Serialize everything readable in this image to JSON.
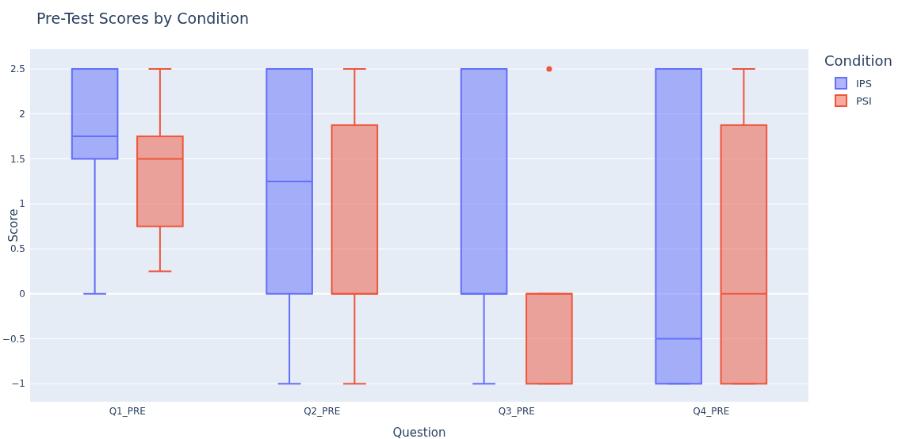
{
  "chart_data": {
    "type": "box",
    "title": "Pre-Test Scores by Condition",
    "xlabel": "Question",
    "ylabel": "Score",
    "legend_title": "Condition",
    "legend": "top right",
    "grid": "y",
    "categories": [
      "Q1_PRE",
      "Q2_PRE",
      "Q3_PRE",
      "Q4_PRE"
    ],
    "ylim": [
      -1.2,
      2.72
    ],
    "yticks": [
      -1,
      -0.5,
      0,
      0.5,
      1,
      1.5,
      2,
      2.5
    ],
    "series": [
      {
        "name": "IPS",
        "color": "#636efa",
        "boxes": [
          {
            "low": 0,
            "q1": 1.5,
            "median": 1.75,
            "q3": 2.5,
            "high": 2.5
          },
          {
            "low": -1,
            "q1": 0,
            "median": 1.25,
            "q3": 2.5,
            "high": 2.5
          },
          {
            "low": -1,
            "q1": 0,
            "median": 0,
            "q3": 2.5,
            "high": 2.5
          },
          {
            "low": -1,
            "q1": -1,
            "median": -0.5,
            "q3": 2.5,
            "high": 2.5
          }
        ]
      },
      {
        "name": "PSI",
        "color": "#ef553b",
        "boxes": [
          {
            "low": 0.25,
            "q1": 0.75,
            "median": 1.5,
            "q3": 1.75,
            "high": 2.5
          },
          {
            "low": -1,
            "q1": 0,
            "median": 0,
            "q3": 1.875,
            "high": 2.5
          },
          {
            "low": -1,
            "q1": -1,
            "median": 0,
            "q3": 0,
            "high": 0,
            "outliers": [
              2.5
            ]
          },
          {
            "low": -1,
            "q1": -1,
            "median": 0,
            "q3": 1.875,
            "high": 2.5
          }
        ]
      }
    ]
  }
}
